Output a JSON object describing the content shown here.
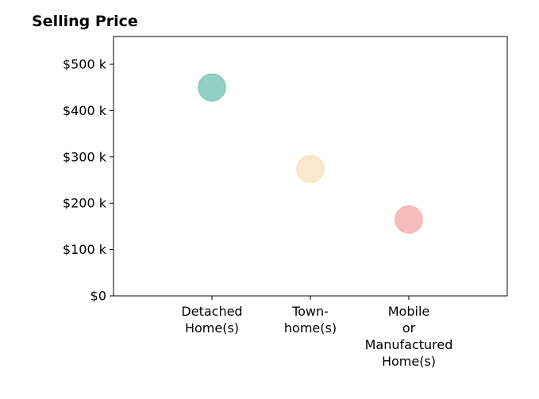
{
  "chart_data": {
    "type": "scatter",
    "title": "Selling Price",
    "xlabel": "",
    "ylabel": "",
    "categories": [
      [
        "Detached",
        "Home(s)"
      ],
      [
        "Town-",
        "home(s)"
      ],
      [
        "Mobile",
        "or",
        "Manufactured",
        "Home(s)"
      ]
    ],
    "values": [
      450000,
      274000,
      165000
    ],
    "colors": [
      "#7fc7ba",
      "#f8e4c2",
      "#f5b1b4"
    ],
    "ylim": [
      0,
      560000
    ],
    "yticks": [
      0,
      100000,
      200000,
      300000,
      400000,
      500000
    ],
    "ytick_labels": [
      "$0",
      "$100 k",
      "$200 k",
      "$300 k",
      "$400 k",
      "$500 k"
    ],
    "grid": false,
    "legend": "none"
  }
}
